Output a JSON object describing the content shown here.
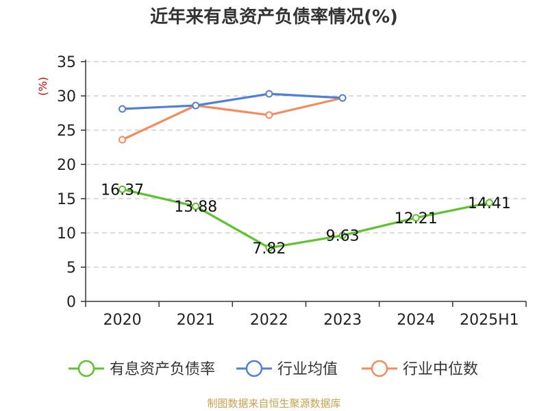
{
  "colors": {
    "axis": "#333333",
    "grid": "#c8c8c8",
    "unit": "#d40000",
    "source": "#c8a050"
  },
  "chart_data": {
    "type": "line",
    "title": "近年来有息资产负债率情况(%)",
    "y_unit_label": "(%)",
    "categories": [
      "2020",
      "2021",
      "2022",
      "2023",
      "2024",
      "2025H1"
    ],
    "ylim": [
      0,
      35
    ],
    "yticks": [
      0,
      5,
      10,
      15,
      20,
      25,
      30,
      35
    ],
    "grid": "horizontal-dashed",
    "legend_position": "bottom",
    "series": [
      {
        "name": "有息资产负债率",
        "color": "#5ec22c",
        "values": [
          16.37,
          13.88,
          7.82,
          9.63,
          12.21,
          14.41
        ],
        "data_labels": [
          "16.37",
          "13.88",
          "7.82",
          "9.63",
          "12.21",
          "14.41"
        ]
      },
      {
        "name": "行业均值",
        "color": "#4f7fd9",
        "values": [
          28.1,
          28.6,
          30.3,
          29.7,
          null,
          null
        ]
      },
      {
        "name": "行业中位数",
        "color": "#f58a5a",
        "values": [
          23.6,
          28.6,
          27.2,
          29.7,
          null,
          null
        ]
      }
    ]
  },
  "source_note": "制图数据来自恒生聚源数据库"
}
